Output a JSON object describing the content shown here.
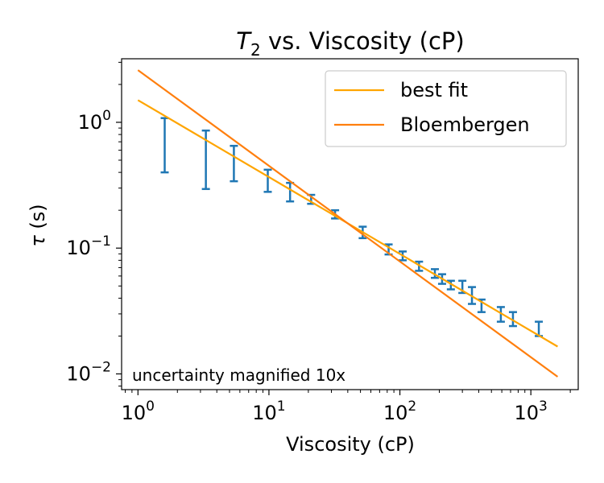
{
  "chart_data": {
    "type": "scatter",
    "title": {
      "main": "T",
      "sub": "2",
      "rest": " vs. Viscosity (cP)"
    },
    "xlabel": "Viscosity (cP)",
    "ylabel": {
      "symbol": "τ",
      "rest": " (s)"
    },
    "xscale": "log",
    "yscale": "log",
    "xlim": [
      0.75,
      2300
    ],
    "ylim": [
      0.0075,
      3.2
    ],
    "x_ticks": [
      {
        "value": 1,
        "base": "10",
        "exp": "0"
      },
      {
        "value": 10,
        "base": "10",
        "exp": "1"
      },
      {
        "value": 100,
        "base": "10",
        "exp": "2"
      },
      {
        "value": 1000,
        "base": "10",
        "exp": "3"
      }
    ],
    "y_ticks": [
      {
        "value": 0.01,
        "base": "10",
        "exp": "−2"
      },
      {
        "value": 0.1,
        "base": "10",
        "exp": "−1"
      },
      {
        "value": 1,
        "base": "10",
        "exp": "0"
      }
    ],
    "annotation": "uncertainty magnified 10x",
    "legend_position": "top-right",
    "legend": [
      {
        "label": "best fit",
        "color": "#ffa500"
      },
      {
        "label": "Bloembergen",
        "color": "#ff7f0e"
      }
    ],
    "errorbar_color": "#1f77b4",
    "errorbars": [
      {
        "x": 1.6,
        "low": 0.4,
        "high": 1.08
      },
      {
        "x": 3.3,
        "low": 0.295,
        "high": 0.86
      },
      {
        "x": 5.4,
        "low": 0.34,
        "high": 0.65
      },
      {
        "x": 9.8,
        "low": 0.28,
        "high": 0.42
      },
      {
        "x": 14.5,
        "low": 0.235,
        "high": 0.33
      },
      {
        "x": 21,
        "low": 0.225,
        "high": 0.265
      },
      {
        "x": 32,
        "low": 0.172,
        "high": 0.2
      },
      {
        "x": 52,
        "low": 0.12,
        "high": 0.148
      },
      {
        "x": 82,
        "low": 0.089,
        "high": 0.107
      },
      {
        "x": 105,
        "low": 0.08,
        "high": 0.094
      },
      {
        "x": 140,
        "low": 0.066,
        "high": 0.078
      },
      {
        "x": 185,
        "low": 0.058,
        "high": 0.068
      },
      {
        "x": 210,
        "low": 0.052,
        "high": 0.062
      },
      {
        "x": 245,
        "low": 0.047,
        "high": 0.055
      },
      {
        "x": 300,
        "low": 0.044,
        "high": 0.055
      },
      {
        "x": 355,
        "low": 0.036,
        "high": 0.049
      },
      {
        "x": 420,
        "low": 0.031,
        "high": 0.039
      },
      {
        "x": 590,
        "low": 0.026,
        "high": 0.034
      },
      {
        "x": 730,
        "low": 0.024,
        "high": 0.031
      },
      {
        "x": 1150,
        "low": 0.02,
        "high": 0.026
      }
    ],
    "lines": [
      {
        "name": "best fit",
        "color": "#ffa500",
        "x": [
          1,
          1600
        ],
        "y": [
          1.5,
          0.0165
        ]
      },
      {
        "name": "Bloembergen",
        "color": "#ff7f0e",
        "x": [
          1,
          1600
        ],
        "y": [
          2.6,
          0.0095
        ]
      }
    ]
  }
}
